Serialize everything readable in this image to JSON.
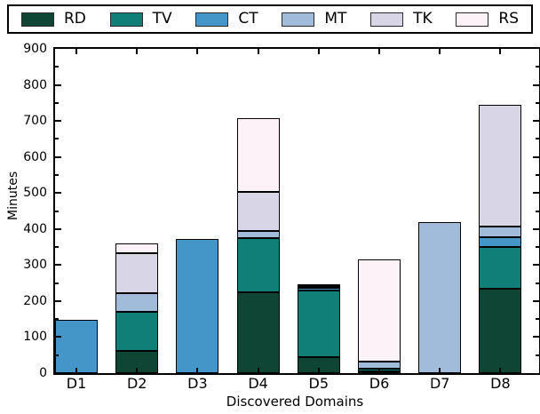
{
  "chart_data": {
    "type": "bar",
    "subtype": "stacked-vertical",
    "title": "",
    "xlabel": "Discovered Domains",
    "ylabel": "Minutes",
    "ylim": [
      0,
      900
    ],
    "yticks": [
      0,
      100,
      200,
      300,
      400,
      500,
      600,
      700,
      800,
      900
    ],
    "minor_ytick_step": 50,
    "grid": false,
    "legend_position": "top",
    "categories": [
      "D1",
      "D2",
      "D3",
      "D4",
      "D5",
      "D6",
      "D7",
      "D8"
    ],
    "series": [
      {
        "name": "RD",
        "color": "#0e4534",
        "values": [
          0,
          62,
          0,
          225,
          45,
          6,
          0,
          235
        ]
      },
      {
        "name": "TV",
        "color": "#0f7f78",
        "values": [
          0,
          108,
          0,
          151,
          185,
          6,
          0,
          115
        ]
      },
      {
        "name": "CT",
        "color": "#4596c8",
        "values": [
          148,
          0,
          372,
          0,
          6,
          0,
          0,
          28
        ]
      },
      {
        "name": "MT",
        "color": "#a1bcdb",
        "values": [
          0,
          52,
          0,
          18,
          5,
          21,
          420,
          30
        ]
      },
      {
        "name": "TK",
        "color": "#d8d5e6",
        "values": [
          0,
          112,
          0,
          110,
          5,
          0,
          0,
          336
        ]
      },
      {
        "name": "RS",
        "color": "#fcf2f7",
        "values": [
          0,
          26,
          0,
          204,
          0,
          282,
          0,
          0
        ]
      }
    ],
    "bar_totals": [
      148,
      360,
      372,
      708,
      246,
      315,
      420,
      744
    ],
    "axis_color": "#000000",
    "bar_edge_color": "#000000"
  }
}
